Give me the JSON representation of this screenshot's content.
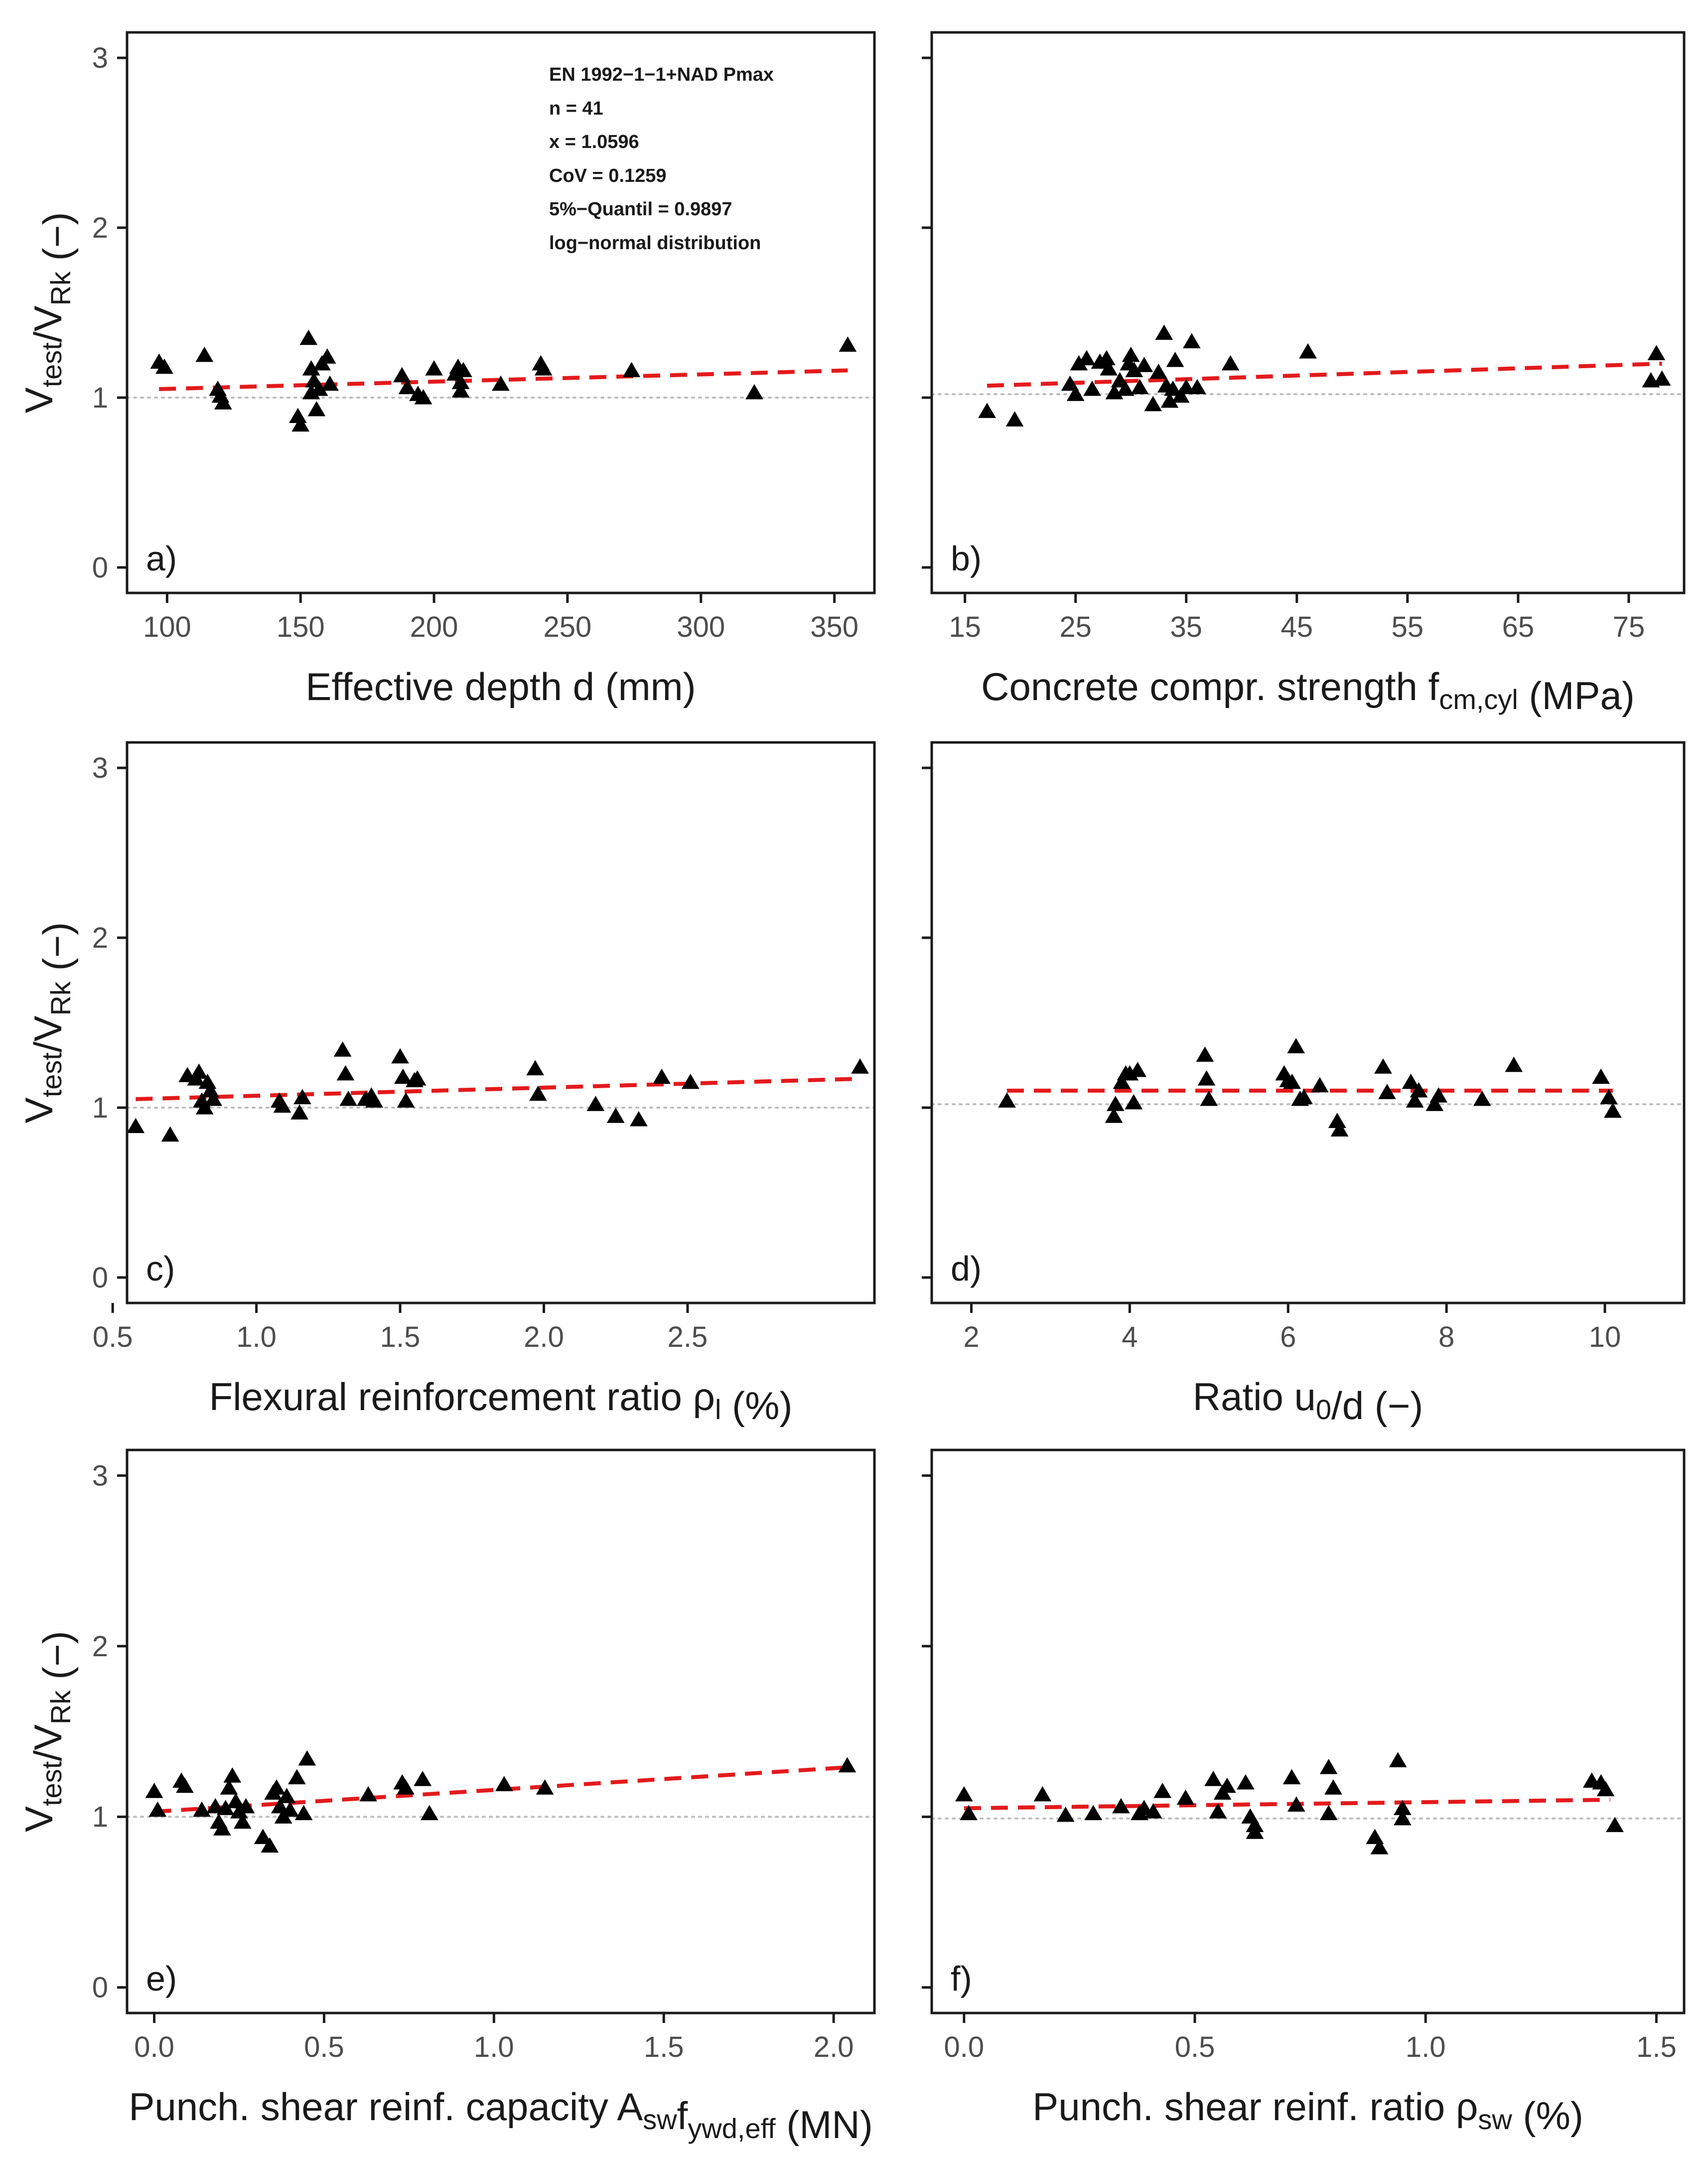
{
  "annotation": [
    "EN 1992−1−1+NAD Pmax",
    "n = 41",
    "x = 1.0596",
    "CoV = 0.1259",
    "5%−Quantil = 0.9897",
    "log−normal distribution"
  ],
  "colors": {
    "trend": "#e31a1c",
    "reference": "#bdbdbd",
    "points": "#000000",
    "frame": "#1a1a1a"
  },
  "y_title": {
    "main": "V",
    "sub1": "test",
    "slash": "/V",
    "sub2": "Rk",
    "unit": " (−)"
  },
  "chart_data": [
    {
      "type": "scatter",
      "panel": "a)",
      "xlabel": {
        "pre": "Effective depth  d (mm)",
        "sub": "",
        "post": ""
      },
      "xlim": [
        85,
        365
      ],
      "ylim": [
        -0.15,
        3.15
      ],
      "xticks": [
        "100",
        "150",
        "200",
        "250",
        "300",
        "350"
      ],
      "yticks": [
        "0",
        "1",
        "2",
        "3"
      ],
      "reference_line": 1.0,
      "trend": [
        [
          97,
          1.05
        ],
        [
          355,
          1.16
        ]
      ],
      "x": [
        97,
        99,
        114,
        119,
        120,
        121,
        149,
        150,
        153,
        154,
        154,
        155,
        156,
        157,
        158,
        160,
        161,
        188,
        190,
        194,
        196,
        200,
        208,
        209,
        210,
        210,
        211,
        225,
        240,
        241,
        274,
        320,
        355
      ],
      "y": [
        1.21,
        1.18,
        1.25,
        1.05,
        1.01,
        0.97,
        0.89,
        0.84,
        1.35,
        1.03,
        1.17,
        1.1,
        0.93,
        1.05,
        1.2,
        1.24,
        1.08,
        1.13,
        1.06,
        1.02,
        1.0,
        1.17,
        1.14,
        1.18,
        1.04,
        1.09,
        1.16,
        1.08,
        1.2,
        1.17,
        1.16,
        1.03,
        1.31
      ]
    },
    {
      "type": "scatter",
      "panel": "b)",
      "xlabel": {
        "pre": "Concrete compr. strength f",
        "sub": "cm,cyl",
        "post": " (MPa)"
      },
      "xlim": [
        12,
        80
      ],
      "ylim": [
        -0.15,
        3.15
      ],
      "xticks": [
        "15",
        "25",
        "35",
        "45",
        "55",
        "65",
        "75"
      ],
      "yticks": [],
      "reference_line": 1.02,
      "trend": [
        [
          17,
          1.07
        ],
        [
          78,
          1.2
        ]
      ],
      "x": [
        17.0,
        19.5,
        24.5,
        25.0,
        25.3,
        26.0,
        26.5,
        27.2,
        27.8,
        28.0,
        28.5,
        29.0,
        29.5,
        29.8,
        30.0,
        30.3,
        30.8,
        31.2,
        32.0,
        32.5,
        33.0,
        33.2,
        33.5,
        33.8,
        34.0,
        34.5,
        35.0,
        35.5,
        36.0,
        39.0,
        46.0,
        77.0,
        77.5,
        78.0
      ],
      "y": [
        0.92,
        0.87,
        1.08,
        1.02,
        1.2,
        1.23,
        1.05,
        1.21,
        1.23,
        1.17,
        1.03,
        1.1,
        1.05,
        1.2,
        1.25,
        1.16,
        1.06,
        1.19,
        0.96,
        1.15,
        1.38,
        1.07,
        0.98,
        1.05,
        1.22,
        1.01,
        1.06,
        1.33,
        1.06,
        1.2,
        1.27,
        1.1,
        1.26,
        1.11
      ]
    },
    {
      "type": "scatter",
      "panel": "c)",
      "xlabel": {
        "pre": "Flexural reinforcement ratio ρ",
        "sub": "l",
        "post": " (%)"
      },
      "xlim": [
        0.55,
        3.15
      ],
      "ylim": [
        -0.15,
        3.15
      ],
      "xticks": [
        "0.5",
        "1.0",
        "1.5",
        "2.0",
        "2.5"
      ],
      "yticks": [
        "0",
        "1",
        "2",
        "3"
      ],
      "reference_line": 1.0,
      "trend": [
        [
          0.58,
          1.05
        ],
        [
          3.1,
          1.17
        ]
      ],
      "x": [
        0.58,
        0.7,
        0.76,
        0.79,
        0.8,
        0.81,
        0.82,
        0.83,
        0.84,
        0.85,
        1.08,
        1.09,
        1.15,
        1.16,
        1.3,
        1.31,
        1.32,
        1.38,
        1.4,
        1.41,
        1.5,
        1.51,
        1.52,
        1.55,
        1.56,
        1.97,
        1.98,
        2.18,
        2.25,
        2.33,
        2.41,
        2.51,
        3.1
      ],
      "y": [
        0.89,
        0.84,
        1.19,
        1.17,
        1.21,
        1.04,
        1.0,
        1.15,
        1.1,
        1.05,
        1.04,
        1.01,
        0.97,
        1.06,
        1.34,
        1.2,
        1.05,
        1.05,
        1.07,
        1.04,
        1.3,
        1.18,
        1.04,
        1.16,
        1.17,
        1.23,
        1.08,
        1.02,
        0.95,
        0.93,
        1.18,
        1.15,
        1.24
      ]
    },
    {
      "type": "scatter",
      "panel": "d)",
      "xlabel": {
        "pre": "Ratio u",
        "sub": "0",
        "post": "/d (−)"
      },
      "xlim": [
        1.5,
        11.0
      ],
      "ylim": [
        -0.15,
        3.15
      ],
      "xticks": [
        "2",
        "4",
        "6",
        "8",
        "10"
      ],
      "yticks": [],
      "reference_line": 1.02,
      "trend": [
        [
          2.45,
          1.1
        ],
        [
          10.1,
          1.1
        ]
      ],
      "x": [
        2.45,
        3.8,
        3.82,
        3.9,
        3.95,
        4.0,
        4.05,
        4.1,
        4.95,
        4.97,
        5.0,
        5.95,
        6.0,
        6.05,
        6.1,
        6.15,
        6.2,
        6.4,
        6.62,
        6.65,
        7.2,
        7.25,
        7.55,
        7.6,
        7.65,
        7.85,
        7.9,
        8.45,
        8.85,
        9.95,
        10.05,
        10.1
      ],
      "y": [
        1.04,
        0.95,
        1.02,
        1.15,
        1.2,
        1.2,
        1.03,
        1.22,
        1.31,
        1.17,
        1.05,
        1.2,
        1.16,
        1.15,
        1.36,
        1.05,
        1.06,
        1.13,
        0.92,
        0.87,
        1.24,
        1.09,
        1.15,
        1.04,
        1.1,
        1.02,
        1.07,
        1.05,
        1.25,
        1.18,
        1.06,
        0.98
      ]
    },
    {
      "type": "scatter",
      "panel": "e)",
      "xlabel": {
        "pre": "Punch. shear reinf. capacity A",
        "sub": "sw",
        "post": "f",
        "sub2": "ywd,eff",
        "post2": " (MN)"
      },
      "xlim": [
        -0.08,
        2.12
      ],
      "ylim": [
        -0.15,
        3.15
      ],
      "xticks": [
        "0.0",
        "0.5",
        "1.0",
        "1.5",
        "2.0"
      ],
      "yticks": [
        "0",
        "1",
        "2",
        "3"
      ],
      "reference_line": 1.0,
      "trend": [
        [
          0.0,
          1.03
        ],
        [
          2.04,
          1.29
        ]
      ],
      "x": [
        0.0,
        0.01,
        0.08,
        0.09,
        0.14,
        0.18,
        0.19,
        0.2,
        0.21,
        0.22,
        0.23,
        0.24,
        0.25,
        0.26,
        0.27,
        0.32,
        0.34,
        0.35,
        0.36,
        0.37,
        0.38,
        0.39,
        0.4,
        0.42,
        0.44,
        0.45,
        0.63,
        0.73,
        0.74,
        0.79,
        0.81,
        1.03,
        1.15,
        2.04
      ],
      "y": [
        1.15,
        1.04,
        1.21,
        1.18,
        1.04,
        1.06,
        0.97,
        0.93,
        1.05,
        1.17,
        1.24,
        1.09,
        1.03,
        0.97,
        1.06,
        0.88,
        0.83,
        1.14,
        1.17,
        1.06,
        1.0,
        1.12,
        1.04,
        1.23,
        1.02,
        1.34,
        1.13,
        1.2,
        1.17,
        1.22,
        1.02,
        1.19,
        1.17,
        1.3
      ]
    },
    {
      "type": "scatter",
      "panel": "f)",
      "xlabel": {
        "pre": "Punch. shear reinf. ratio ρ",
        "sub": "sw",
        "post": " (%)"
      },
      "xlim": [
        -0.07,
        1.56
      ],
      "ylim": [
        -0.15,
        3.15
      ],
      "xticks": [
        "0.0",
        "0.5",
        "1.0",
        "1.5"
      ],
      "yticks": [],
      "reference_line": 0.99,
      "trend": [
        [
          0.0,
          1.05
        ],
        [
          1.4,
          1.1
        ]
      ],
      "x": [
        0.0,
        0.01,
        0.17,
        0.22,
        0.28,
        0.34,
        0.38,
        0.39,
        0.41,
        0.43,
        0.48,
        0.54,
        0.55,
        0.56,
        0.57,
        0.61,
        0.62,
        0.63,
        0.63,
        0.71,
        0.72,
        0.79,
        0.8,
        0.79,
        0.89,
        0.9,
        0.94,
        0.95,
        0.95,
        1.36,
        1.38,
        1.39,
        1.41
      ],
      "y": [
        1.13,
        1.02,
        1.13,
        1.01,
        1.02,
        1.06,
        1.02,
        1.05,
        1.03,
        1.15,
        1.11,
        1.22,
        1.03,
        1.14,
        1.18,
        1.2,
        1.0,
        0.95,
        0.91,
        1.23,
        1.07,
        1.29,
        1.17,
        1.02,
        0.88,
        0.82,
        1.33,
        1.05,
        0.99,
        1.21,
        1.2,
        1.16,
        0.95
      ]
    }
  ]
}
